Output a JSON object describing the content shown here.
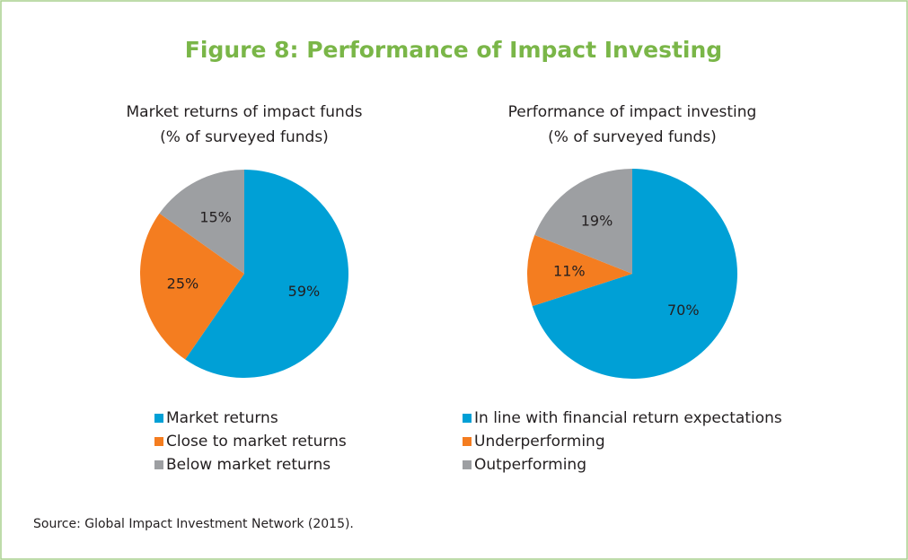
{
  "title": "Figure 8: Performance of Impact Investing",
  "source": "Source: Global Impact Investment Network (2015).",
  "chart_data": [
    {
      "type": "pie",
      "title": "Market returns of impact funds",
      "subtitle": "(% of surveyed funds)",
      "categories": [
        "Market returns",
        "Close to market returns",
        "Below market returns"
      ],
      "values": [
        59,
        25,
        15
      ],
      "value_labels": [
        "59%",
        "25%",
        "15%"
      ],
      "colors": [
        "#00a0d6",
        "#f47d20",
        "#9d9fa2"
      ]
    },
    {
      "type": "pie",
      "title": "Performance of impact investing",
      "subtitle": "(% of surveyed funds)",
      "categories": [
        "In line with  financial return expectations",
        "Underperforming",
        "Outperforming"
      ],
      "values": [
        70,
        11,
        19
      ],
      "value_labels": [
        "70%",
        "11%",
        "19%"
      ],
      "colors": [
        "#00a0d6",
        "#f47d20",
        "#9d9fa2"
      ]
    }
  ]
}
